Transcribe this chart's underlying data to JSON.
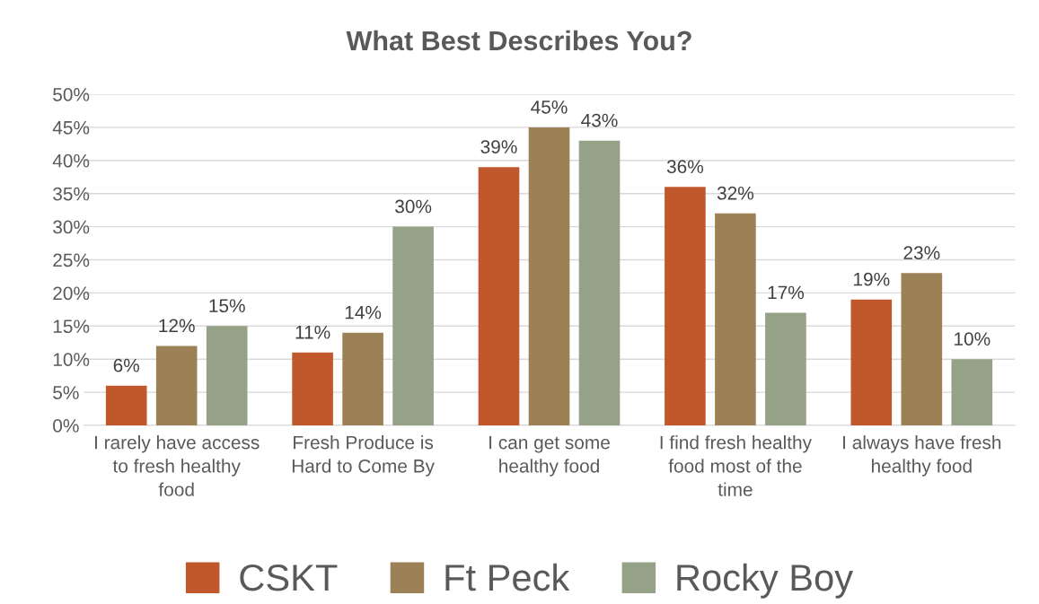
{
  "chart_data": {
    "type": "bar",
    "title": "What Best Describes You?",
    "categories": [
      "I rarely have access\nto fresh healthy\nfood",
      "Fresh Produce is\nHard to Come By",
      "I can get some\nhealthy food",
      "I find fresh healthy\nfood most of the\ntime",
      "I always have fresh\nhealthy food"
    ],
    "series": [
      {
        "name": "CSKT",
        "color": "#c0582c",
        "values": [
          6,
          11,
          39,
          36,
          19
        ],
        "value_labels": [
          "6%",
          "11%",
          "39%",
          "36%",
          "19%"
        ]
      },
      {
        "name": "Ft Peck",
        "color": "#9c8156",
        "values": [
          12,
          14,
          45,
          32,
          23
        ],
        "value_labels": [
          "12%",
          "14%",
          "45%",
          "32%",
          "23%"
        ]
      },
      {
        "name": "Rocky Boy",
        "color": "#95a287",
        "values": [
          15,
          30,
          43,
          17,
          10
        ],
        "value_labels": [
          "15%",
          "30%",
          "43%",
          "17%",
          "10%"
        ]
      }
    ],
    "ylim": [
      0,
      50
    ],
    "yticks": [
      {
        "value": 0,
        "label": "0%"
      },
      {
        "value": 5,
        "label": "5%"
      },
      {
        "value": 10,
        "label": "10%"
      },
      {
        "value": 15,
        "label": "15%"
      },
      {
        "value": 20,
        "label": "20%"
      },
      {
        "value": 25,
        "label": "25%"
      },
      {
        "value": 30,
        "label": "30%"
      },
      {
        "value": 35,
        "label": "35%"
      },
      {
        "value": 40,
        "label": "40%"
      },
      {
        "value": 45,
        "label": "45%"
      },
      {
        "value": 50,
        "label": "50%"
      }
    ],
    "grid": "y",
    "legend": "bottom"
  }
}
